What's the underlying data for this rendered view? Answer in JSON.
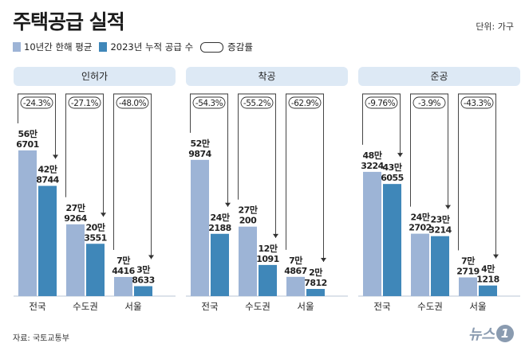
{
  "title": "주택공급 실적",
  "unit": "단위: 가구",
  "legend": {
    "series1": "10년간 한해 평균",
    "series2": "2023년 누적 공급 수",
    "change": "증감률"
  },
  "source": "자료: 국토교통부",
  "logo": {
    "text": "뉴스",
    "mark": "1"
  },
  "colors": {
    "series1": "#9db4d6",
    "series2": "#3f87b9",
    "header_bg": "#dde9f5"
  },
  "chart_data": [
    {
      "type": "bar",
      "title": "인허가",
      "categories": [
        "전국",
        "수도권",
        "서울"
      ],
      "series": [
        {
          "name": "10년간 한해 평균",
          "values": [
            566701,
            279264,
            74416
          ],
          "labels": [
            [
              "56만",
              "6701"
            ],
            [
              "27만",
              "9264"
            ],
            [
              "7만",
              "4416"
            ]
          ]
        },
        {
          "name": "2023년 누적 공급 수",
          "values": [
            428744,
            203551,
            38633
          ],
          "labels": [
            [
              "42만",
              "8744"
            ],
            [
              "20만",
              "3551"
            ],
            [
              "3만",
              "8633"
            ]
          ]
        }
      ],
      "changes": [
        "-24.3%",
        "-27.1%",
        "-48.0%"
      ]
    },
    {
      "type": "bar",
      "title": "착공",
      "categories": [
        "전국",
        "수도권",
        "서울"
      ],
      "series": [
        {
          "name": "10년간 한해 평균",
          "values": [
            529874,
            270200,
            74867
          ],
          "labels": [
            [
              "52만",
              "9874"
            ],
            [
              "27만",
              "200"
            ],
            [
              "7만",
              "4867"
            ]
          ]
        },
        {
          "name": "2023년 누적 공급 수",
          "values": [
            242188,
            121091,
            27812
          ],
          "labels": [
            [
              "24만",
              "2188"
            ],
            [
              "12만",
              "1091"
            ],
            [
              "2만",
              "7812"
            ]
          ]
        }
      ],
      "changes": [
        "-54.3%",
        "-55.2%",
        "-62.9%"
      ]
    },
    {
      "type": "bar",
      "title": "준공",
      "categories": [
        "전국",
        "수도권",
        "서울"
      ],
      "series": [
        {
          "name": "10년간 한해 평균",
          "values": [
            483224,
            242702,
            72719
          ],
          "labels": [
            [
              "48만",
              "3224"
            ],
            [
              "24만",
              "2702"
            ],
            [
              "7만",
              "2719"
            ]
          ]
        },
        {
          "name": "2023년 누적 공급 수",
          "values": [
            436055,
            233214,
            41218
          ],
          "labels": [
            [
              "43만",
              "6055"
            ],
            [
              "23만",
              "3214"
            ],
            [
              "4만",
              "1218"
            ]
          ]
        }
      ],
      "changes": [
        "-9.76%",
        "-3.9%",
        "-43.3%"
      ]
    }
  ]
}
